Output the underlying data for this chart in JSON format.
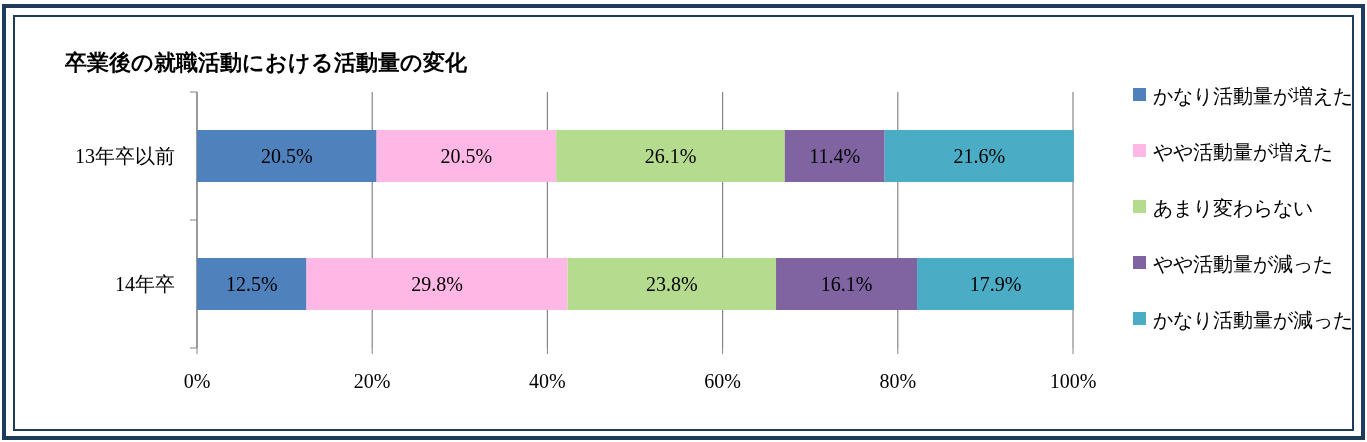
{
  "chart_data": {
    "type": "bar",
    "orientation": "horizontal",
    "stacked": true,
    "title": "卒業後の就職活動における活動量の変化",
    "categories": [
      "13年卒以前",
      "14年卒"
    ],
    "series": [
      {
        "name": "かなり活動量が増えた",
        "color": "#4f81bd",
        "values": [
          20.5,
          12.5
        ],
        "value_labels": [
          "20.5%",
          "12.5%"
        ]
      },
      {
        "name": "やや活動量が増えた",
        "color": "#ffb8e6",
        "values": [
          20.5,
          29.8
        ],
        "value_labels": [
          "20.5%",
          "29.8%"
        ]
      },
      {
        "name": "あまり変わらない",
        "color": "#b5db8f",
        "values": [
          26.1,
          23.8
        ],
        "value_labels": [
          "26.1%",
          "23.8%"
        ]
      },
      {
        "name": "やや活動量が減った",
        "color": "#8064a2",
        "values": [
          11.4,
          16.1
        ],
        "value_labels": [
          "11.4%",
          "16.1%"
        ]
      },
      {
        "name": "かなり活動量が減った",
        "color": "#4bacc6",
        "values": [
          21.6,
          17.9
        ],
        "value_labels": [
          "21.6%",
          "17.9%"
        ]
      }
    ],
    "xlim": [
      0,
      100
    ],
    "xticks": [
      {
        "value": 0,
        "label": "0%"
      },
      {
        "value": 20,
        "label": "20%"
      },
      {
        "value": 40,
        "label": "40%"
      },
      {
        "value": 60,
        "label": "60%"
      },
      {
        "value": 80,
        "label": "80%"
      },
      {
        "value": 100,
        "label": "100%"
      }
    ],
    "grid": "x",
    "legend": "right"
  }
}
